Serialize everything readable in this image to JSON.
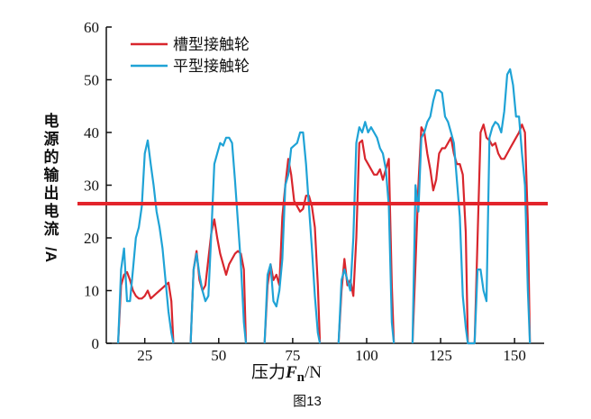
{
  "chart_data": {
    "type": "line",
    "xlabel_prefix": "压力",
    "xlabel_var": "F",
    "xlabel_sub": "n",
    "xlabel_unit": "/N",
    "ylabel": "电源的输出电流/A",
    "caption": "图13",
    "xlim": [
      12,
      160
    ],
    "ylim": [
      0,
      60
    ],
    "x_ticks": [
      25,
      50,
      75,
      100,
      125,
      150
    ],
    "y_ticks": [
      0,
      10,
      20,
      30,
      40,
      50,
      60
    ],
    "threshold": {
      "y": 26.5,
      "color": "#e3242b"
    },
    "legend_position": "top-left",
    "series": [
      {
        "name": "槽型接触轮",
        "color": "#d8262d",
        "x": [
          16,
          17,
          18,
          19,
          20,
          21,
          22,
          23,
          24,
          25,
          26,
          27,
          28,
          29,
          30,
          31,
          32,
          33,
          34,
          34.7,
          40.5,
          41.5,
          42.5,
          43.5,
          44.5,
          45.5,
          46.5,
          47.5,
          48.5,
          49.5,
          50.5,
          51.5,
          52.5,
          53.5,
          54.5,
          55.5,
          56.5,
          57.5,
          58.5,
          59.2,
          65.5,
          66.5,
          67.5,
          68.5,
          69.5,
          70.5,
          71.5,
          72.5,
          73.5,
          74.5,
          75.5,
          76.5,
          77.5,
          78.5,
          79.5,
          80.5,
          81.5,
          82.5,
          83.5,
          84.2,
          90.5,
          91.5,
          92.5,
          93.5,
          94.5,
          95.5,
          96.5,
          97.5,
          98.5,
          99.5,
          100.5,
          101.5,
          102.5,
          103.5,
          104.5,
          105.5,
          106.5,
          107.5,
          108.5,
          109.2,
          115.5,
          116.5,
          117.5,
          118.5,
          119.5,
          120.5,
          121.5,
          122.5,
          123.5,
          124.5,
          125.5,
          126.5,
          127.5,
          128.5,
          129.5,
          130.5,
          131.5,
          132.5,
          133.5,
          134.2,
          136.5,
          137.5,
          138.5,
          139.5,
          140.5,
          141.5,
          142.5,
          143.5,
          144.5,
          145.5,
          146.5,
          147.5,
          148.5,
          149.5,
          150.5,
          151.5,
          152.5,
          153.5,
          154.5,
          155.2
        ],
        "y": [
          0,
          11,
          13,
          13.5,
          12,
          10,
          9,
          8.5,
          8.5,
          9,
          10,
          8.5,
          9,
          9.5,
          10,
          10.5,
          11,
          11.5,
          8,
          0,
          0,
          14,
          17.5,
          12,
          10,
          11,
          16,
          21,
          23.5,
          20,
          17,
          15,
          13,
          15,
          16,
          17,
          17.5,
          17,
          14,
          0,
          0,
          11,
          15,
          12,
          13,
          11,
          24,
          30,
          35,
          32,
          27,
          26,
          25,
          25.5,
          28,
          28,
          26,
          22,
          11,
          0,
          0,
          10,
          16,
          11,
          12,
          9,
          20,
          38,
          38.5,
          35,
          34,
          33,
          32,
          32,
          33,
          31,
          33,
          35,
          11,
          0,
          0,
          15,
          30,
          41,
          40,
          36,
          33,
          29,
          31,
          36,
          37,
          37,
          38,
          39,
          36,
          34,
          34,
          32,
          21,
          0,
          0,
          20,
          40,
          41.5,
          39,
          38.5,
          37.5,
          38,
          36,
          35,
          35,
          36,
          37,
          38,
          39,
          40,
          41.5,
          40,
          23,
          0
        ]
      },
      {
        "name": "平型接触轮",
        "color": "#1fa3d6",
        "x": [
          16,
          17,
          18,
          19,
          20,
          21,
          22,
          23,
          24,
          25,
          26,
          27,
          28,
          29,
          30,
          31,
          32,
          33,
          34,
          34.7,
          40.5,
          41.5,
          42.5,
          43.5,
          44.5,
          45.5,
          46.5,
          47.5,
          48.5,
          49.5,
          50.5,
          51.5,
          52.5,
          53.5,
          54.5,
          55.5,
          56.5,
          57.5,
          58.5,
          59.2,
          65.5,
          66.5,
          67.5,
          68.5,
          69.5,
          70.5,
          71.5,
          72.5,
          73.5,
          74.5,
          75.5,
          76.5,
          77.5,
          78.5,
          79.5,
          80.5,
          81.5,
          82.5,
          83.5,
          84.2,
          90.5,
          91.5,
          92.5,
          93.5,
          94.5,
          95.5,
          96.5,
          97.5,
          98.5,
          99.5,
          100.5,
          101.5,
          102.5,
          103.5,
          104.5,
          105.5,
          106.5,
          107.5,
          108.5,
          109.2,
          115.5,
          116.5,
          117.5,
          118.5,
          119.5,
          120.5,
          121.5,
          122.5,
          123.5,
          124.5,
          125.5,
          126.5,
          127.5,
          128.5,
          129.5,
          130.5,
          131.5,
          132.5,
          133.5,
          134.2,
          136.5,
          137.5,
          138.5,
          139.5,
          140.5,
          141.5,
          142.5,
          143.5,
          144.5,
          145.5,
          146.5,
          147.5,
          148.5,
          149.5,
          150.5,
          151.5,
          152.5,
          153.5,
          154.5,
          155.2
        ],
        "y": [
          0,
          14,
          18,
          8,
          8,
          14,
          20,
          22,
          26,
          36,
          38.5,
          34,
          30,
          25,
          22,
          18,
          12,
          6,
          2,
          0,
          0,
          14,
          17,
          13,
          10,
          8,
          9,
          21,
          34,
          36,
          38,
          37.5,
          39,
          39,
          38,
          31,
          23,
          15,
          4,
          0,
          0,
          13,
          15,
          8,
          7,
          10,
          16,
          30,
          32,
          37,
          37.5,
          38,
          40,
          40,
          34,
          26,
          18,
          9,
          2,
          0,
          0,
          12,
          14,
          12,
          10,
          20,
          38,
          41,
          40,
          42,
          40,
          41,
          40,
          39,
          37,
          36,
          33,
          26,
          4,
          0,
          0,
          30,
          25,
          39,
          40,
          42,
          43,
          46,
          48,
          48,
          47.5,
          43,
          42,
          40,
          38,
          31,
          24,
          9,
          3,
          0,
          0,
          14,
          14,
          10,
          8,
          39,
          41,
          42,
          41.5,
          40,
          44,
          51,
          52,
          49,
          43,
          43,
          36,
          30,
          10,
          0
        ]
      }
    ]
  }
}
